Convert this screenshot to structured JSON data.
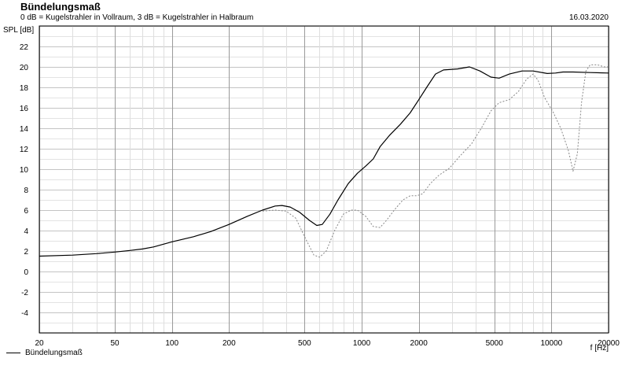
{
  "header": {
    "title": "Bündelungsmaß",
    "subtitle": "0 dB = Kugelstrahler in Vollraum, 3 dB = Kugelstrahler in Halbraum",
    "date": "16.03.2020"
  },
  "legend": {
    "label": "Bündelungsmaß"
  },
  "chart_data": {
    "type": "line",
    "ylabel": "SPL [dB]",
    "xlabel": "f [Hz]",
    "xscale": "log",
    "xlim": [
      20,
      20000
    ],
    "ylim": [
      -6,
      24
    ],
    "grid": true,
    "legend_position": "bottom-left",
    "x_tick_labels": [
      "20",
      "50",
      "100",
      "200",
      "500",
      "1000",
      "2000",
      "5000",
      "10000",
      "20000"
    ],
    "y_tick_labels": [
      "-4",
      "-2",
      "0",
      "2",
      "4",
      "6",
      "8",
      "10",
      "12",
      "14",
      "16",
      "18",
      "20",
      "22"
    ],
    "series": [
      {
        "name": "Bündelungsmaß",
        "style": "solid",
        "color": "#000000",
        "points": [
          [
            20,
            1.5
          ],
          [
            30,
            1.6
          ],
          [
            40,
            1.75
          ],
          [
            50,
            1.9
          ],
          [
            60,
            2.05
          ],
          [
            70,
            2.2
          ],
          [
            80,
            2.4
          ],
          [
            100,
            2.9
          ],
          [
            130,
            3.4
          ],
          [
            160,
            3.9
          ],
          [
            200,
            4.6
          ],
          [
            250,
            5.4
          ],
          [
            300,
            6.0
          ],
          [
            350,
            6.4
          ],
          [
            380,
            6.45
          ],
          [
            420,
            6.3
          ],
          [
            470,
            5.8
          ],
          [
            530,
            5.0
          ],
          [
            580,
            4.5
          ],
          [
            620,
            4.6
          ],
          [
            680,
            5.6
          ],
          [
            750,
            7.0
          ],
          [
            850,
            8.6
          ],
          [
            950,
            9.6
          ],
          [
            1050,
            10.3
          ],
          [
            1150,
            11.0
          ],
          [
            1250,
            12.2
          ],
          [
            1400,
            13.3
          ],
          [
            1600,
            14.4
          ],
          [
            1800,
            15.5
          ],
          [
            2000,
            16.8
          ],
          [
            2200,
            18.0
          ],
          [
            2450,
            19.3
          ],
          [
            2700,
            19.7
          ],
          [
            3200,
            19.8
          ],
          [
            3700,
            20.0
          ],
          [
            4200,
            19.6
          ],
          [
            4800,
            19.0
          ],
          [
            5300,
            18.9
          ],
          [
            6000,
            19.3
          ],
          [
            7000,
            19.6
          ],
          [
            8000,
            19.6
          ],
          [
            9500,
            19.35
          ],
          [
            10500,
            19.4
          ],
          [
            11500,
            19.5
          ],
          [
            13000,
            19.5
          ],
          [
            16000,
            19.45
          ],
          [
            20000,
            19.4
          ]
        ]
      },
      {
        "name": "",
        "style": "dotted",
        "color": "#888888",
        "points": [
          [
            300,
            5.9
          ],
          [
            350,
            6.0
          ],
          [
            400,
            5.9
          ],
          [
            450,
            5.2
          ],
          [
            500,
            3.4
          ],
          [
            560,
            1.6
          ],
          [
            600,
            1.4
          ],
          [
            650,
            2.0
          ],
          [
            720,
            4.0
          ],
          [
            800,
            5.6
          ],
          [
            880,
            6.0
          ],
          [
            950,
            6.0
          ],
          [
            1050,
            5.4
          ],
          [
            1150,
            4.4
          ],
          [
            1250,
            4.3
          ],
          [
            1350,
            5.0
          ],
          [
            1500,
            6.1
          ],
          [
            1650,
            7.0
          ],
          [
            1800,
            7.4
          ],
          [
            1950,
            7.4
          ],
          [
            2100,
            7.6
          ],
          [
            2300,
            8.6
          ],
          [
            2550,
            9.4
          ],
          [
            2900,
            10.1
          ],
          [
            3300,
            11.3
          ],
          [
            3800,
            12.5
          ],
          [
            4300,
            14.1
          ],
          [
            4800,
            15.7
          ],
          [
            5300,
            16.5
          ],
          [
            6000,
            16.8
          ],
          [
            6700,
            17.6
          ],
          [
            7400,
            18.8
          ],
          [
            8000,
            19.3
          ],
          [
            8500,
            18.7
          ],
          [
            9200,
            17.0
          ],
          [
            10200,
            15.6
          ],
          [
            11200,
            14.0
          ],
          [
            12300,
            11.8
          ],
          [
            13000,
            9.8
          ],
          [
            13700,
            11.5
          ],
          [
            14400,
            16.5
          ],
          [
            15200,
            19.6
          ],
          [
            16000,
            20.2
          ],
          [
            17500,
            20.2
          ],
          [
            19000,
            20.0
          ],
          [
            20000,
            20.0
          ]
        ]
      }
    ]
  }
}
